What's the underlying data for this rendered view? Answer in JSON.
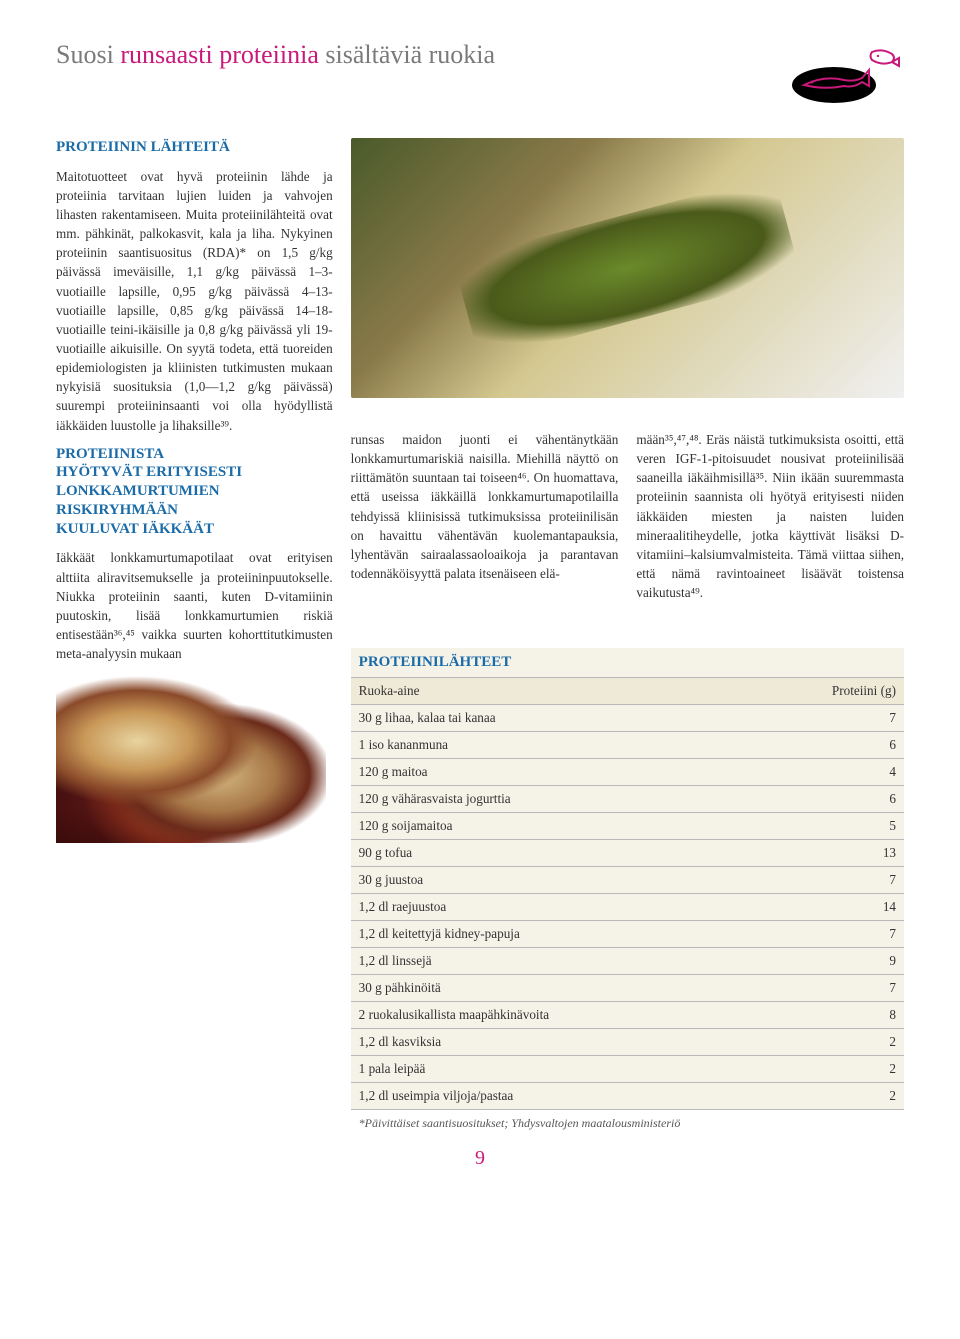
{
  "page": {
    "number": "9",
    "background_color": "#ffffff",
    "accent_color": "#c9197a",
    "heading_color": "#1a6ba8",
    "body_color": "#333333",
    "table_bg": "#f5f2e8",
    "table_header_bg": "#efe9d8",
    "table_border": "#b8b8b8"
  },
  "title": {
    "pre": "Suosi ",
    "accent": "runsaasti proteiinia",
    "post": " sisältäviä ruokia"
  },
  "headings": {
    "h1": "PROTEIININ LÄHTEITÄ",
    "h2_line1": "PROTEIINISTA",
    "h2_line2": "HYÖTYVÄT ERITYISESTI",
    "h2_line3": "LONKKAMURTUMIEN",
    "h2_line4": "RISKIRYHMÄÄN",
    "h2_line5": "KUULUVAT IÄKKÄÄT"
  },
  "paragraphs": {
    "p1": "Maitotuotteet ovat hyvä proteiinin lähde ja proteiinia tarvitaan lujien luiden ja vahvojen lihasten rakentamiseen. Muita proteiinilähteitä ovat mm. pähkinät, palkokasvit, kala ja liha. Nykyinen proteiinin saantisuositus (RDA)* on 1,5 g/kg päivässä imeväisille, 1,1 g/kg päivässä 1–3-vuotiaille lapsille, 0,95 g/kg päivässä 4–13-vuotiaille lapsille, 0,85 g/kg päivässä 14–18-vuotiaille teini-ikäisille ja 0,8 g/kg päivässä yli 19-vuotiaille aikuisille. On syytä todeta, että tuoreiden epidemiologisten ja kliinisten tutkimusten mukaan nykyisiä suosituksia (1,0—1,2 g/kg päivässä) suurempi proteiininsaanti voi olla hyödyllistä iäkkäiden luustolle ja lihaksille³⁹.",
    "p2": "Iäkkäät lonkkamurtumapotilaat ovat erityisen alttiita aliravitsemukselle ja proteiininpuutokselle. Niukka proteiinin saanti, kuten D-vitamiinin puutoskin, lisää lonkkamurtumien riskiä entisestään³⁶,⁴⁵ vaikka suurten kohorttitutkimusten meta-analyysin mukaan",
    "p3": "runsas maidon juonti ei vähentänytkään lonkkamurtumariskiä naisilla. Miehillä näyttö on riittämätön suuntaan tai toiseen⁴⁶. On huomattava, että useissa iäkkäillä lonkkamurtumapotilailla tehdyissä kliinisissä tutkimuksissa proteiinilisän on havaittu vähentävän kuolemantapauksia, lyhentävän sairaalassaoloaikoja ja parantavan todennäköisyyttä palata itsenäiseen elä-",
    "p4": "mään³⁵,⁴⁷,⁴⁸. Eräs näistä tutkimuksista osoitti, että veren IGF-1-pitoisuudet nousivat proteiinilisää saaneilla iäkäihmisillä³⁵. Niin ikään suuremmasta proteiinin saannista oli hyötyä erityisesti niiden iäkkäiden miesten ja naisten luiden mineraalitiheydelle, jotka käyttivät lisäksi D-vitamiini–kalsiumvalmisteita. Tämä viittaa siihen, että nämä ravintoaineet lisäävät toistensa vaikutusta⁴⁹."
  },
  "table": {
    "title": "PROTEIINILÄHTEET",
    "col1": "Ruoka-aine",
    "col2": "Proteiini (g)",
    "rows": [
      {
        "food": "30 g lihaa, kalaa tai kanaa",
        "protein": "7"
      },
      {
        "food": "1 iso kananmuna",
        "protein": "6"
      },
      {
        "food": "120 g maitoa",
        "protein": "4"
      },
      {
        "food": "120 g vähärasvaista jogurttia",
        "protein": "6"
      },
      {
        "food": "120 g soijamaitoa",
        "protein": "5"
      },
      {
        "food": "90 g tofua",
        "protein": "13"
      },
      {
        "food": "30 g juustoa",
        "protein": "7"
      },
      {
        "food": "1,2 dl raejuustoa",
        "protein": "14"
      },
      {
        "food": "1,2 dl keitettyjä kidney-papuja",
        "protein": "7"
      },
      {
        "food": "1,2 dl linssejä",
        "protein": "9"
      },
      {
        "food": "30 g pähkinöitä",
        "protein": "7"
      },
      {
        "food": "2 ruokalusikallista maapähkinävoita",
        "protein": "8"
      },
      {
        "food": "1,2 dl kasviksia",
        "protein": "2"
      },
      {
        "food": "1 pala leipää",
        "protein": "2"
      },
      {
        "food": "1,2 dl useimpia viljoja/pastaa",
        "protein": "2"
      }
    ],
    "footnote": "*Päivittäiset saantisuositukset; Yhdysvaltojen maatalousministeriö"
  }
}
